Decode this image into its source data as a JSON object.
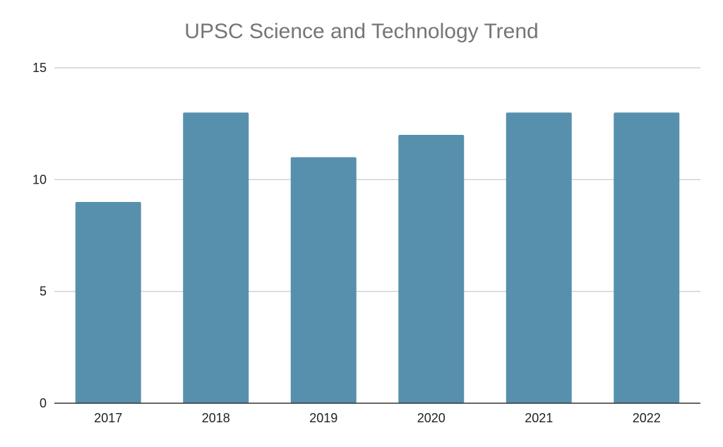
{
  "chart_data": {
    "type": "bar",
    "title": "UPSC Science and Technology Trend",
    "categories": [
      "2017",
      "2018",
      "2019",
      "2020",
      "2021",
      "2022"
    ],
    "values": [
      9,
      13,
      11,
      12,
      13,
      13
    ],
    "ylim": [
      0,
      15
    ],
    "yticks": [
      0,
      5,
      10,
      15
    ],
    "grid": true,
    "bar_color": "#5790ad",
    "grid_color": "#c6c6c6",
    "axis_color": "#333333",
    "title_color": "#757575",
    "label_color": "#222222"
  }
}
